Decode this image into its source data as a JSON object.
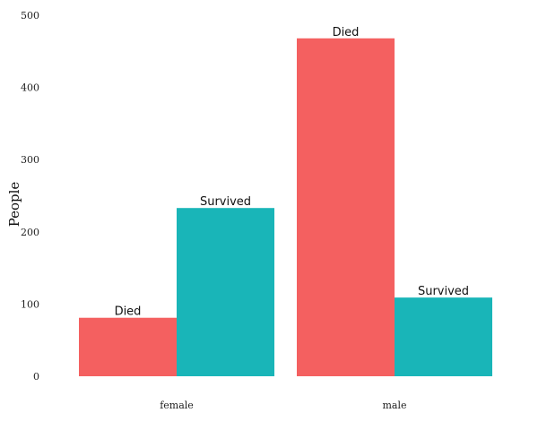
{
  "chart_data": {
    "type": "bar",
    "xlabel": "",
    "ylabel": "People",
    "ylim": [
      0,
      500
    ],
    "yticks": [
      0,
      100,
      200,
      300,
      400,
      500
    ],
    "grid": false,
    "legend": "none",
    "categories": [
      "female",
      "male"
    ],
    "series": [
      {
        "label": "Died",
        "color": "#F46060",
        "values": [
          81,
          468
        ]
      },
      {
        "label": "Survived",
        "color": "#19B5B8",
        "values": [
          233,
          109
        ]
      }
    ]
  }
}
